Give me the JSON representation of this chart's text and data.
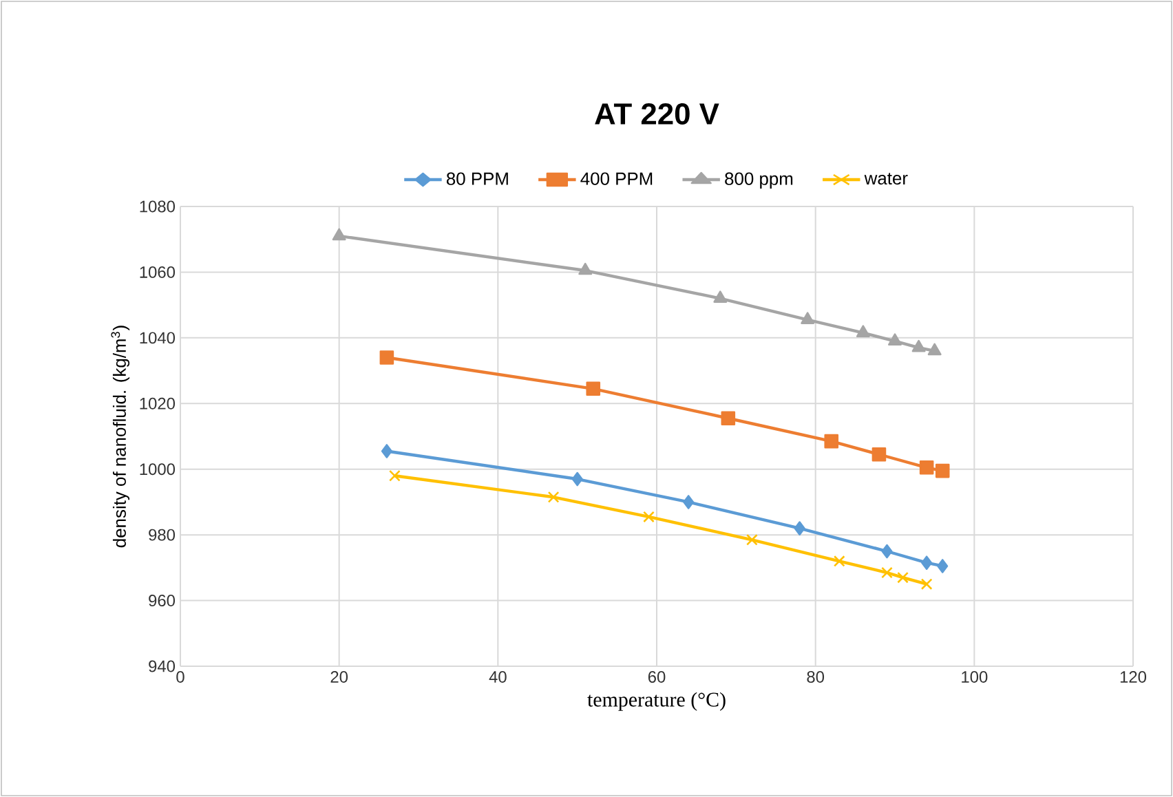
{
  "chart_data": {
    "type": "line",
    "title": "AT 220 V",
    "xlabel": "temperature (°C)",
    "ylabel": "density of nanofluid. (kg/m$^{3}$)",
    "xlim": [
      0,
      120
    ],
    "xticks": [
      0,
      20,
      40,
      60,
      80,
      100,
      120
    ],
    "ylim": [
      940,
      1080
    ],
    "yticks": [
      940,
      960,
      980,
      1000,
      1020,
      1040,
      1060,
      1080
    ],
    "grid": true,
    "legend": "top",
    "series": [
      {
        "name": "80 PPM",
        "color": "#5b9bd5",
        "marker": "diamond",
        "x": [
          26,
          50,
          64,
          78,
          89,
          94,
          96
        ],
        "values": [
          1005.5,
          997,
          990,
          982,
          975,
          971.5,
          970.5
        ]
      },
      {
        "name": "400 PPM",
        "color": "#ed7d31",
        "marker": "square",
        "x": [
          26,
          52,
          69,
          82,
          88,
          94,
          96
        ],
        "values": [
          1034,
          1024.5,
          1015.5,
          1008.5,
          1004.5,
          1000.5,
          999.5
        ]
      },
      {
        "name": "800 ppm",
        "color": "#a5a5a5",
        "marker": "triangle",
        "x": [
          20,
          51,
          68,
          79,
          86,
          90,
          93,
          95
        ],
        "values": [
          1071,
          1060.5,
          1052,
          1045.5,
          1041.5,
          1039,
          1037,
          1036
        ]
      },
      {
        "name": "water",
        "color": "#ffc000",
        "marker": "cross",
        "x": [
          27,
          47,
          59,
          72,
          83,
          89,
          91,
          94
        ],
        "values": [
          998,
          991.5,
          985.5,
          978.5,
          972,
          968.5,
          967,
          965
        ]
      }
    ]
  }
}
